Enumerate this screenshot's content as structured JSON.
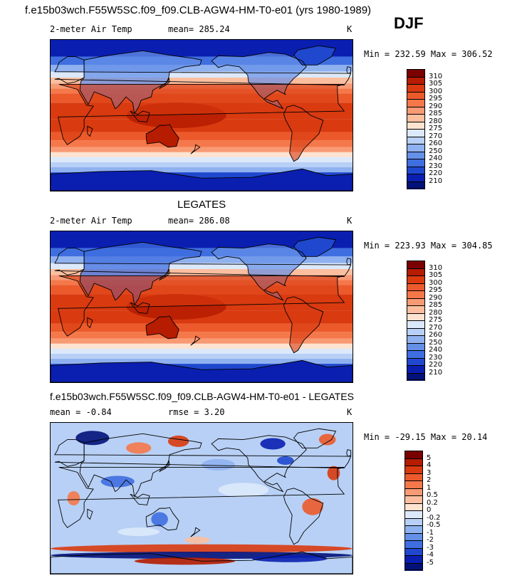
{
  "header": {
    "title": "f.e15b03wch.F55W5SC.f09_f09.CLB-AGW4-HM-T0-e01 (yrs 1980-1989)",
    "season": "DJF"
  },
  "panels": [
    {
      "title": "",
      "variable": "2-meter Air Temp",
      "mean": "mean= 285.24",
      "units": "K",
      "minmax": "Min = 232.59 Max = 306.52",
      "type": "temperature",
      "colorbar": {
        "labels": [
          "310",
          "305",
          "300",
          "295",
          "290",
          "285",
          "280",
          "275",
          "270",
          "260",
          "250",
          "240",
          "230",
          "220",
          "210"
        ],
        "colors": [
          "#7a0000",
          "#b51c00",
          "#d93a10",
          "#ec5a2c",
          "#f5784a",
          "#f89a74",
          "#fbbfa0",
          "#fde3d0",
          "#dce9fb",
          "#b8d0f5",
          "#8fb1ef",
          "#6590e8",
          "#3f6ee0",
          "#1f48cf",
          "#0a1fb0",
          "#03127a"
        ]
      }
    },
    {
      "title": "LEGATES",
      "variable": "2-meter Air Temp",
      "mean": "mean= 286.08",
      "units": "K",
      "minmax": "Min = 223.93 Max = 304.85",
      "type": "temperature",
      "colorbar": {
        "labels": [
          "310",
          "305",
          "300",
          "295",
          "290",
          "285",
          "280",
          "275",
          "270",
          "260",
          "250",
          "240",
          "230",
          "220",
          "210"
        ],
        "colors": [
          "#7a0000",
          "#b51c00",
          "#d93a10",
          "#ec5a2c",
          "#f5784a",
          "#f89a74",
          "#fbbfa0",
          "#fde3d0",
          "#dce9fb",
          "#b8d0f5",
          "#8fb1ef",
          "#6590e8",
          "#3f6ee0",
          "#1f48cf",
          "#0a1fb0",
          "#03127a"
        ]
      }
    },
    {
      "title": "f.e15b03wch.F55W5SC.f09_f09.CLB-AGW4-HM-T0-e01 - LEGATES",
      "variable": "mean =   -0.84",
      "mean": "rmse =   3.20",
      "units": "K",
      "minmax": "Min = -29.15 Max =  20.14",
      "type": "difference",
      "colorbar": {
        "labels": [
          "5",
          "4",
          "3",
          "2",
          "1",
          "0.5",
          "0.2",
          "0",
          "-0.2",
          "-0.5",
          "-1",
          "-2",
          "-3",
          "-4",
          "-5"
        ],
        "colors": [
          "#7a0000",
          "#b51c00",
          "#d93a10",
          "#ec5a2c",
          "#f5784a",
          "#f89a74",
          "#fbbfa0",
          "#fde3d0",
          "#dce9fb",
          "#b8d0f5",
          "#8fb1ef",
          "#6590e8",
          "#3f6ee0",
          "#1f48cf",
          "#0a1fb0",
          "#03127a"
        ]
      }
    }
  ]
}
